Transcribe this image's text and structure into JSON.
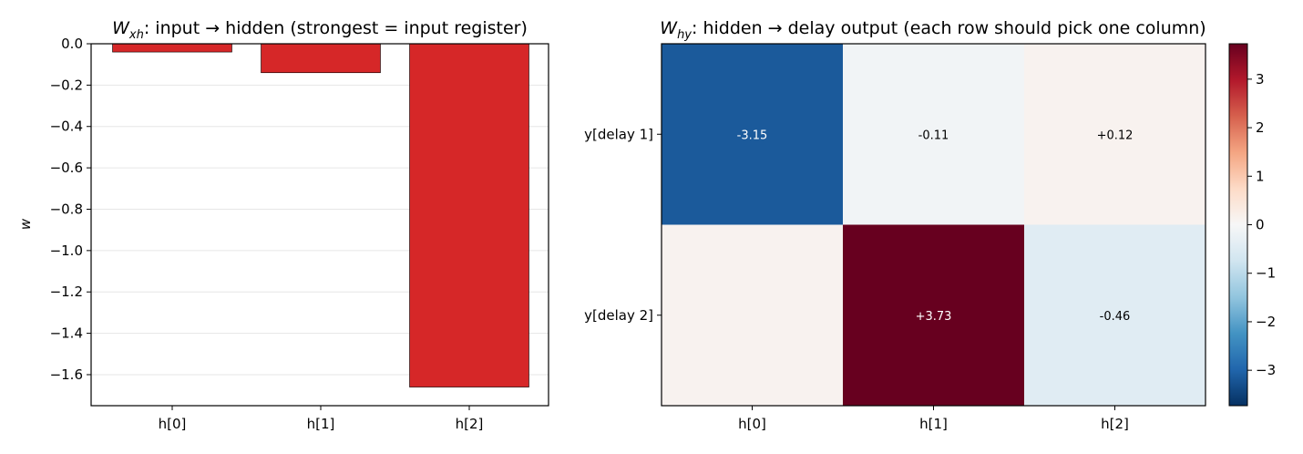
{
  "chart_data": [
    {
      "type": "bar",
      "title_main": "W",
      "title_sub": "xh",
      "title_rest": ": input → hidden  (strongest = input register)",
      "ylabel": "w",
      "categories": [
        "h[0]",
        "h[1]",
        "h[2]"
      ],
      "values": [
        -0.04,
        -0.14,
        -1.66
      ],
      "ylim": [
        -1.75,
        0.0
      ],
      "yticks": [
        0.0,
        -0.2,
        -0.4,
        -0.6,
        -0.8,
        -1.0,
        -1.2,
        -1.4,
        -1.6
      ],
      "ytick_labels": [
        "0.0",
        "−0.2",
        "−0.4",
        "−0.6",
        "−0.8",
        "−1.0",
        "−1.2",
        "−1.4",
        "−1.6"
      ],
      "grid": "horizontal",
      "bar_color": "#d62728"
    },
    {
      "type": "heatmap",
      "title_main": "W",
      "title_sub": "hy",
      "title_rest": ": hidden → delay output  (each row should pick one column)",
      "columns": [
        "h[0]",
        "h[1]",
        "h[2]"
      ],
      "rows": [
        "y[delay 1]",
        "y[delay 2]"
      ],
      "values": [
        [
          -3.15,
          -0.11,
          0.12
        ],
        [
          0.12,
          3.73,
          -0.46
        ]
      ],
      "cell_labels": [
        [
          "-3.15",
          "-0.11",
          "+0.12"
        ],
        [
          "",
          "+3.73",
          "-0.46"
        ]
      ],
      "colormap": "RdBu_r",
      "vmin": -3.73,
      "vmax": 3.73,
      "colorbar_ticks": [
        3,
        2,
        1,
        0,
        -1,
        -2,
        -3
      ],
      "colorbar_tick_labels": [
        "3",
        "2",
        "1",
        "0",
        "−1",
        "−2",
        "−3"
      ]
    }
  ]
}
